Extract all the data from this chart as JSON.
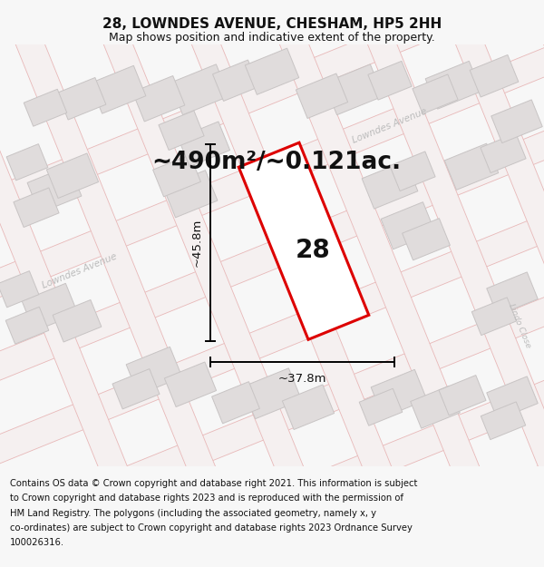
{
  "title": "28, LOWNDES AVENUE, CHESHAM, HP5 2HH",
  "subtitle": "Map shows position and indicative extent of the property.",
  "area_text": "~490m²/~0.121ac.",
  "number_label": "28",
  "dim_height": "~45.8m",
  "dim_width": "~37.8m",
  "bg_color": "#f7f7f7",
  "map_bg": "#f8f7f7",
  "road_line_color": "#e8b8b8",
  "road_fill_color": "#f5f0f0",
  "building_fill": "#e0dcdc",
  "building_edge": "#c8c4c4",
  "plot_edge_color": "#dd0000",
  "plot_fill": "#ffffff",
  "text_color": "#111111",
  "road_label_color": "#bbbbbb",
  "title_fontsize": 11,
  "subtitle_fontsize": 9,
  "area_fontsize": 19,
  "number_fontsize": 20,
  "dim_fontsize": 9.5,
  "footer_fontsize": 7.2,
  "footer_lines": [
    "Contains OS data © Crown copyright and database right 2021. This information is subject",
    "to Crown copyright and database rights 2023 and is reproduced with the permission of",
    "HM Land Registry. The polygons (including the associated geometry, namely x, y",
    "co-ordinates) are subject to Crown copyright and database rights 2023 Ordnance Survey",
    "100026316."
  ]
}
